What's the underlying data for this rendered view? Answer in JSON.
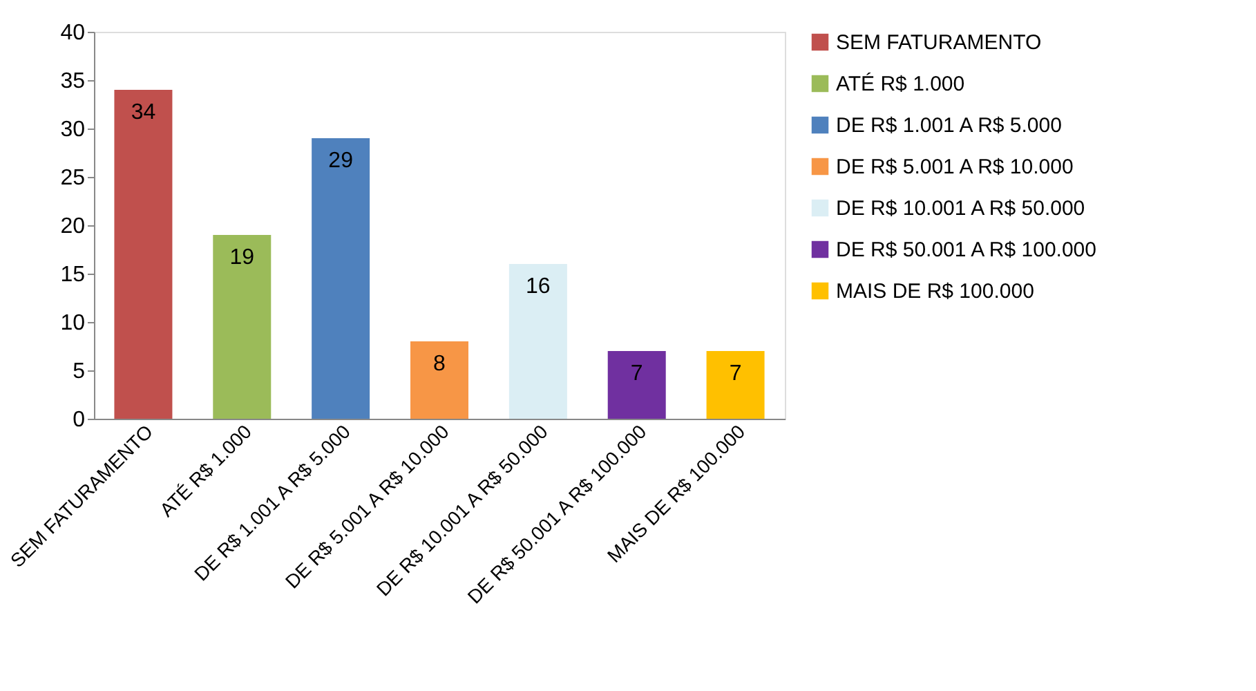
{
  "chart_data": {
    "type": "bar",
    "stacked": true,
    "categories": [
      "SEM FATURAMENTO",
      "ATÉ R$ 1.000",
      "DE R$ 1.001 A R$ 5.000",
      "DE R$ 5.001 A R$ 10.000",
      "DE R$ 10.001 A R$ 50.000",
      "DE R$ 50.001 A  R$ 100.000",
      "MAIS DE R$ 100.000"
    ],
    "series": [
      {
        "name": "SEM FATURAMENTO",
        "color": "#c0504d",
        "values": [
          34,
          null,
          null,
          null,
          null,
          null,
          null
        ]
      },
      {
        "name": "ATÉ R$ 1.000",
        "color": "#9bbb59",
        "values": [
          null,
          19,
          null,
          null,
          null,
          null,
          null
        ]
      },
      {
        "name": "DE R$ 1.001 A R$ 5.000",
        "color": "#4f81bd",
        "values": [
          null,
          null,
          29,
          null,
          null,
          null,
          null
        ]
      },
      {
        "name": "DE R$ 5.001 A R$ 10.000",
        "color": "#f79646",
        "values": [
          null,
          null,
          null,
          8,
          null,
          null,
          null
        ]
      },
      {
        "name": "DE R$ 10.001 A R$ 50.000",
        "color": "#dbeef4",
        "values": [
          null,
          null,
          null,
          null,
          16,
          null,
          null
        ]
      },
      {
        "name": "DE R$ 50.001 A  R$ 100.000",
        "color": "#7030a0",
        "values": [
          null,
          null,
          null,
          null,
          null,
          7,
          null
        ]
      },
      {
        "name": "MAIS DE R$ 100.000",
        "color": "#ffc000",
        "values": [
          null,
          null,
          null,
          null,
          null,
          null,
          7
        ]
      }
    ],
    "ylim": [
      0,
      40
    ],
    "yticks": [
      0,
      5,
      10,
      15,
      20,
      25,
      30,
      35,
      40
    ],
    "grid": false,
    "legend": "right",
    "data_labels": true
  }
}
